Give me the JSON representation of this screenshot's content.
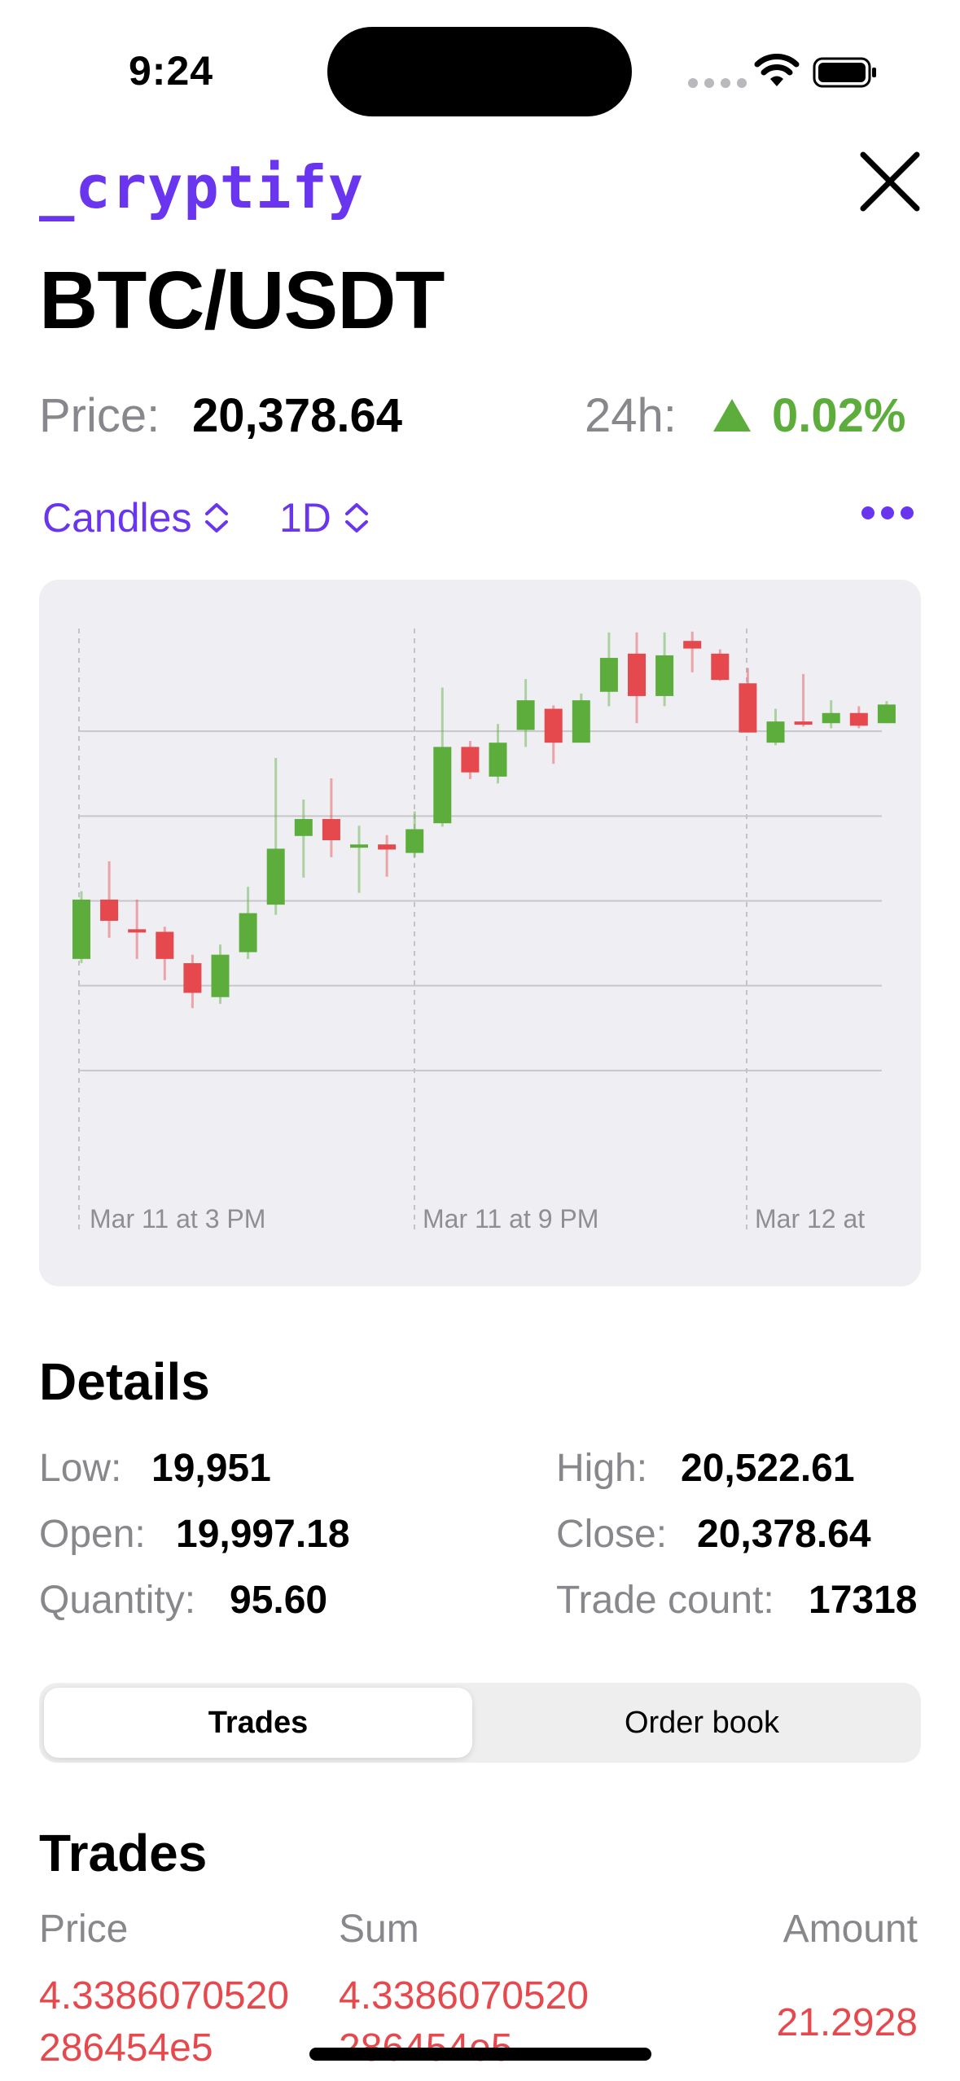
{
  "status_bar": {
    "time": "9:24"
  },
  "header": {
    "brand": "_cryptify",
    "pair": "BTC/USDT",
    "price_label": "Price:",
    "price_value": "20,378.64",
    "change_label": "24h:",
    "change_value": "0.02%",
    "change_direction": "up"
  },
  "controls": {
    "chart_type": "Candles",
    "range": "1D"
  },
  "colors": {
    "accent": "#6a35ee",
    "up": "#5cad3b",
    "down": "#e5484d",
    "secondary_text": "#87878c",
    "chart_background": "#efeff3"
  },
  "chart_data": {
    "type": "candlestick",
    "grid": true,
    "x_tick_labels": [
      "Mar 11 at 3 PM",
      "Mar 11 at 9 PM",
      "Mar 12 at"
    ],
    "ylim": [
      19900,
      20560
    ],
    "candles": [
      {
        "open": 20120,
        "close": 20190,
        "high": 20200,
        "low": 20115
      },
      {
        "open": 20190,
        "close": 20165,
        "high": 20235,
        "low": 20145
      },
      {
        "open": 20155,
        "close": 20152,
        "high": 20190,
        "low": 20120
      },
      {
        "open": 20152,
        "close": 20120,
        "high": 20158,
        "low": 20095
      },
      {
        "open": 20115,
        "close": 20080,
        "high": 20125,
        "low": 20062
      },
      {
        "open": 20075,
        "close": 20125,
        "high": 20137,
        "low": 20067
      },
      {
        "open": 20128,
        "close": 20174,
        "high": 20205,
        "low": 20120
      },
      {
        "open": 20184,
        "close": 20250,
        "high": 20357,
        "low": 20172
      },
      {
        "open": 20265,
        "close": 20285,
        "high": 20308,
        "low": 20216
      },
      {
        "open": 20285,
        "close": 20260,
        "high": 20333,
        "low": 20240
      },
      {
        "open": 20255,
        "close": 20255,
        "high": 20277,
        "low": 20198
      },
      {
        "open": 20255,
        "close": 20249,
        "high": 20266,
        "low": 20217
      },
      {
        "open": 20245,
        "close": 20273,
        "high": 20294,
        "low": 20240
      },
      {
        "open": 20280,
        "close": 20370,
        "high": 20440,
        "low": 20276
      },
      {
        "open": 20370,
        "close": 20340,
        "high": 20377,
        "low": 20332
      },
      {
        "open": 20335,
        "close": 20375,
        "high": 20397,
        "low": 20327
      },
      {
        "open": 20390,
        "close": 20425,
        "high": 20450,
        "low": 20370
      },
      {
        "open": 20415,
        "close": 20375,
        "high": 20419,
        "low": 20350
      },
      {
        "open": 20375,
        "close": 20425,
        "high": 20433,
        "low": 20380
      },
      {
        "open": 20435,
        "close": 20475,
        "high": 20505,
        "low": 20418
      },
      {
        "open": 20480,
        "close": 20430,
        "high": 20505,
        "low": 20398
      },
      {
        "open": 20430,
        "close": 20478,
        "high": 20505,
        "low": 20418
      },
      {
        "open": 20495,
        "close": 20486,
        "high": 20506,
        "low": 20458
      },
      {
        "open": 20480,
        "close": 20449,
        "high": 20485,
        "low": 20448
      },
      {
        "open": 20445,
        "close": 20387,
        "high": 20463,
        "low": 20387
      },
      {
        "open": 20375,
        "close": 20400,
        "high": 20415,
        "low": 20372
      },
      {
        "open": 20400,
        "close": 20397,
        "high": 20456,
        "low": 20394
      },
      {
        "open": 20398,
        "close": 20410,
        "high": 20425,
        "low": 20392
      },
      {
        "open": 20410,
        "close": 20395,
        "high": 20418,
        "low": 20392
      },
      {
        "open": 20398,
        "close": 20420,
        "high": 20424,
        "low": 20398
      }
    ]
  },
  "details": {
    "title": "Details",
    "low_label": "Low:",
    "low_value": "19,951",
    "high_label": "High:",
    "high_value": "20,522.61",
    "open_label": "Open:",
    "open_value": "19,997.18",
    "close_label": "Close:",
    "close_value": "20,378.64",
    "quantity_label": "Quantity:",
    "quantity_value": "95.60",
    "trade_count_label": "Trade count:",
    "trade_count_value": "17318"
  },
  "segments": {
    "trades": "Trades",
    "order_book": "Order book",
    "selected": "Trades"
  },
  "trades": {
    "title": "Trades",
    "headers": {
      "price": "Price",
      "sum": "Sum",
      "amount": "Amount"
    },
    "rows": [
      {
        "price_line1": "4.3386070520",
        "price_line2": "286454e5",
        "sum_line1": "4.3386070520",
        "sum_line2": "286454e5",
        "amount": "21.2928"
      }
    ]
  }
}
